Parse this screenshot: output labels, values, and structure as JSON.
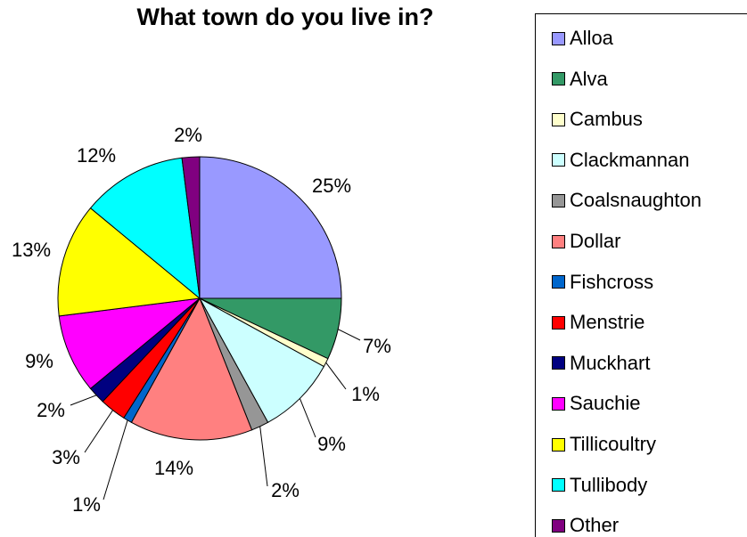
{
  "chart_data": {
    "type": "pie",
    "title": "What town do you live in?",
    "categories": [
      "Alloa",
      "Alva",
      "Cambus",
      "Clackmannan",
      "Coalsnaughton",
      "Dollar",
      "Fishcross",
      "Menstrie",
      "Muckhart",
      "Sauchie",
      "Tillicoultry",
      "Tullibody",
      "Other"
    ],
    "values": [
      25,
      7,
      1,
      9,
      2,
      14,
      1,
      3,
      2,
      9,
      13,
      12,
      2
    ],
    "labels": [
      "25%",
      "7%",
      "1%",
      "9%",
      "2%",
      "14%",
      "1%",
      "3%",
      "2%",
      "9%",
      "13%",
      "12%",
      "2%"
    ],
    "colors": [
      "#9999FF",
      "#339966",
      "#FFFFCC",
      "#CCFFFF",
      "#969696",
      "#FF8080",
      "#0066CC",
      "#FF0000",
      "#000080",
      "#FF00FF",
      "#FFFF00",
      "#00FFFF",
      "#800080"
    ],
    "legend_position": "right"
  }
}
